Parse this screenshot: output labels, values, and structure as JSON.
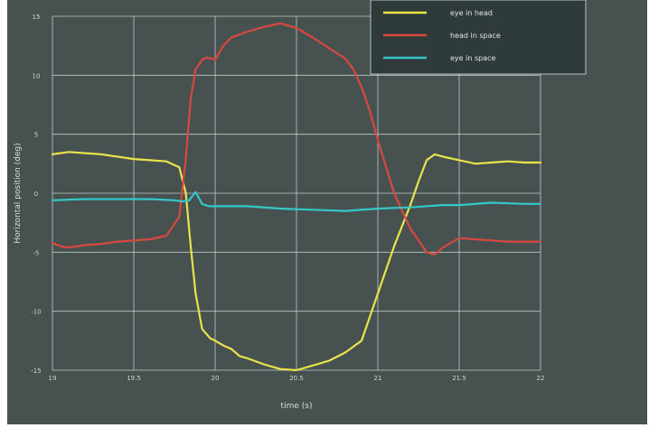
{
  "chart_data": {
    "type": "line",
    "xlabel": "time (s)",
    "ylabel": "Horizontal position (deg)",
    "xlim": [
      19.0,
      22.0
    ],
    "ylim": [
      -15,
      15
    ],
    "xticks": [
      19,
      19.5,
      20,
      20.5,
      21,
      21.5,
      22
    ],
    "xtick_labels": [
      "19",
      "19.5",
      "20",
      "20.5",
      "21",
      "21.5",
      "22"
    ],
    "yticks": [
      -15,
      -10,
      -5,
      0,
      5,
      10,
      15
    ],
    "ytick_labels": [
      "-15",
      "-10",
      "-5",
      "0",
      "5",
      "10",
      "15"
    ],
    "grid": true,
    "legend_position": "top-right",
    "background_color": "#465150",
    "series": [
      {
        "name": "eye in head",
        "color": "#e8e44a",
        "x": [
          19.0,
          19.1,
          19.2,
          19.3,
          19.4,
          19.5,
          19.6,
          19.7,
          19.78,
          19.82,
          19.85,
          19.88,
          19.92,
          19.97,
          20.0,
          20.05,
          20.1,
          20.15,
          20.2,
          20.3,
          20.4,
          20.5,
          20.6,
          20.7,
          20.8,
          20.9,
          21.0,
          21.1,
          21.2,
          21.25,
          21.3,
          21.35,
          21.4,
          21.5,
          21.6,
          21.7,
          21.8,
          21.9,
          22.0
        ],
        "y": [
          3.3,
          3.5,
          3.4,
          3.3,
          3.1,
          2.9,
          2.8,
          2.7,
          2.2,
          0.0,
          -4.5,
          -8.5,
          -11.5,
          -12.3,
          -12.5,
          -12.9,
          -13.2,
          -13.8,
          -14.0,
          -14.5,
          -14.9,
          -15.0,
          -14.6,
          -14.2,
          -13.5,
          -12.5,
          -8.5,
          -4.5,
          -1.0,
          1.0,
          2.8,
          3.3,
          3.1,
          2.8,
          2.5,
          2.6,
          2.7,
          2.6,
          2.6
        ]
      },
      {
        "name": "head in space",
        "color": "#d9483f",
        "x": [
          19.0,
          19.05,
          19.1,
          19.2,
          19.3,
          19.4,
          19.5,
          19.6,
          19.7,
          19.78,
          19.82,
          19.85,
          19.88,
          19.92,
          19.95,
          20.0,
          20.05,
          20.1,
          20.2,
          20.3,
          20.4,
          20.5,
          20.6,
          20.7,
          20.8,
          20.85,
          20.9,
          20.95,
          21.0,
          21.1,
          21.2,
          21.3,
          21.35,
          21.4,
          21.5,
          21.6,
          21.7,
          21.8,
          21.9,
          22.0
        ],
        "y": [
          -4.2,
          -4.5,
          -4.6,
          -4.4,
          -4.3,
          -4.1,
          -4.0,
          -3.9,
          -3.6,
          -2.0,
          3.0,
          8.0,
          10.5,
          11.3,
          11.5,
          11.3,
          12.5,
          13.2,
          13.7,
          14.1,
          14.4,
          14.0,
          13.2,
          12.3,
          11.4,
          10.5,
          9.0,
          7.0,
          4.5,
          0.0,
          -3.0,
          -5.0,
          -5.2,
          -4.6,
          -3.8,
          -3.9,
          -4.0,
          -4.1,
          -4.1,
          -4.1
        ]
      },
      {
        "name": "eye in space",
        "color": "#35c8c8",
        "x": [
          19.0,
          19.2,
          19.4,
          19.6,
          19.75,
          19.8,
          19.84,
          19.88,
          19.92,
          19.96,
          20.0,
          20.2,
          20.4,
          20.6,
          20.8,
          21.0,
          21.2,
          21.4,
          21.5,
          21.7,
          21.9,
          22.0
        ],
        "y": [
          -0.6,
          -0.5,
          -0.5,
          -0.5,
          -0.6,
          -0.7,
          -0.6,
          0.1,
          -0.9,
          -1.1,
          -1.1,
          -1.1,
          -1.3,
          -1.4,
          -1.5,
          -1.3,
          -1.2,
          -1.0,
          -1.0,
          -0.8,
          -0.9,
          -0.9
        ]
      }
    ]
  }
}
